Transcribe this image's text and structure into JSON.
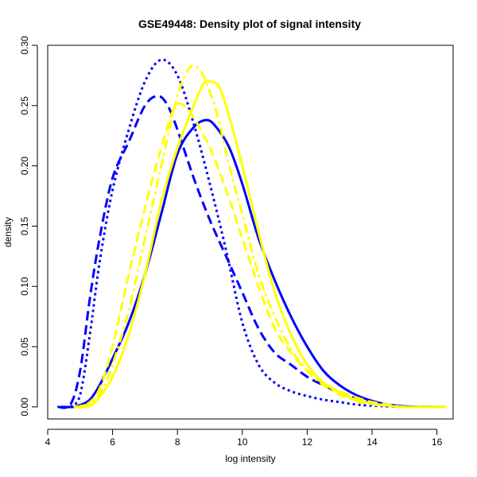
{
  "chart_data": {
    "type": "line",
    "title": "GSE49448: Density plot of signal intensity",
    "xlabel": "log intensity",
    "ylabel": "density",
    "xlim": [
      4,
      16.5
    ],
    "ylim": [
      -0.01,
      0.3
    ],
    "x_ticks": [
      4,
      6,
      8,
      10,
      12,
      14,
      16
    ],
    "y_ticks": [
      0.0,
      0.05,
      0.1,
      0.15,
      0.2,
      0.25,
      0.3
    ],
    "x_tick_labels": [
      "4",
      "6",
      "8",
      "10",
      "12",
      "14",
      "16"
    ],
    "y_tick_labels": [
      "0.00",
      "0.05",
      "0.10",
      "0.15",
      "0.20",
      "0.25",
      "0.30"
    ],
    "grid": false,
    "legend": "none",
    "series": [
      {
        "color": "#0000ff",
        "linestyle": "solid",
        "points": [
          [
            4.4,
            0.0
          ],
          [
            4.8,
            0.0
          ],
          [
            5.0,
            0.0015
          ],
          [
            5.3,
            0.006
          ],
          [
            5.6,
            0.018
          ],
          [
            6.0,
            0.04
          ],
          [
            6.5,
            0.07
          ],
          [
            7.0,
            0.11
          ],
          [
            7.5,
            0.16
          ],
          [
            8.0,
            0.21
          ],
          [
            8.5,
            0.232
          ],
          [
            8.9,
            0.238
          ],
          [
            9.2,
            0.232
          ],
          [
            9.6,
            0.215
          ],
          [
            10.0,
            0.185
          ],
          [
            10.5,
            0.14
          ],
          [
            11.0,
            0.105
          ],
          [
            11.5,
            0.075
          ],
          [
            12.0,
            0.05
          ],
          [
            12.5,
            0.03
          ],
          [
            13.0,
            0.018
          ],
          [
            13.5,
            0.01
          ],
          [
            14.0,
            0.005
          ],
          [
            14.5,
            0.002
          ],
          [
            15.0,
            0.0005
          ],
          [
            15.5,
            0.0
          ],
          [
            16.2,
            0.0
          ]
        ]
      },
      {
        "color": "#0000ff",
        "linestyle": "dashed",
        "points": [
          [
            4.3,
            0.0
          ],
          [
            4.7,
            0.002
          ],
          [
            5.0,
            0.03
          ],
          [
            5.3,
            0.09
          ],
          [
            5.6,
            0.14
          ],
          [
            6.0,
            0.19
          ],
          [
            6.5,
            0.22
          ],
          [
            7.0,
            0.25
          ],
          [
            7.4,
            0.258
          ],
          [
            7.7,
            0.25
          ],
          [
            8.0,
            0.23
          ],
          [
            8.5,
            0.19
          ],
          [
            9.0,
            0.155
          ],
          [
            9.5,
            0.125
          ],
          [
            10.0,
            0.095
          ],
          [
            10.5,
            0.065
          ],
          [
            11.0,
            0.045
          ],
          [
            11.5,
            0.035
          ],
          [
            12.0,
            0.025
          ],
          [
            12.5,
            0.018
          ],
          [
            13.0,
            0.012
          ],
          [
            13.5,
            0.007
          ],
          [
            14.0,
            0.003
          ],
          [
            14.5,
            0.001
          ],
          [
            15.0,
            0.0
          ],
          [
            16.0,
            0.0
          ]
        ]
      },
      {
        "color": "#0000ff",
        "linestyle": "dotted",
        "points": [
          [
            4.7,
            0.0
          ],
          [
            5.0,
            0.01
          ],
          [
            5.3,
            0.06
          ],
          [
            5.6,
            0.12
          ],
          [
            6.0,
            0.18
          ],
          [
            6.5,
            0.23
          ],
          [
            7.0,
            0.27
          ],
          [
            7.5,
            0.288
          ],
          [
            8.0,
            0.275
          ],
          [
            8.5,
            0.235
          ],
          [
            9.0,
            0.185
          ],
          [
            9.5,
            0.13
          ],
          [
            10.0,
            0.07
          ],
          [
            10.5,
            0.035
          ],
          [
            11.0,
            0.02
          ],
          [
            11.5,
            0.013
          ],
          [
            12.0,
            0.009
          ],
          [
            12.5,
            0.006
          ],
          [
            13.0,
            0.004
          ],
          [
            13.5,
            0.002
          ],
          [
            14.0,
            0.001
          ],
          [
            15.0,
            0.0
          ]
        ]
      },
      {
        "color": "#ffff00",
        "linestyle": "solid",
        "points": [
          [
            4.8,
            0.0
          ],
          [
            5.2,
            0.0
          ],
          [
            5.5,
            0.005
          ],
          [
            6.0,
            0.025
          ],
          [
            6.5,
            0.06
          ],
          [
            7.0,
            0.11
          ],
          [
            7.5,
            0.17
          ],
          [
            8.0,
            0.215
          ],
          [
            8.5,
            0.25
          ],
          [
            8.8,
            0.268
          ],
          [
            9.0,
            0.27
          ],
          [
            9.3,
            0.265
          ],
          [
            9.6,
            0.24
          ],
          [
            10.0,
            0.2
          ],
          [
            10.5,
            0.145
          ],
          [
            11.0,
            0.095
          ],
          [
            11.5,
            0.06
          ],
          [
            12.0,
            0.035
          ],
          [
            12.5,
            0.02
          ],
          [
            13.0,
            0.012
          ],
          [
            13.5,
            0.006
          ],
          [
            14.0,
            0.003
          ],
          [
            14.5,
            0.001
          ],
          [
            15.0,
            0.0
          ],
          [
            16.3,
            0.0
          ]
        ]
      },
      {
        "color": "#ffff00",
        "linestyle": "dashed",
        "points": [
          [
            4.8,
            0.0
          ],
          [
            5.2,
            0.002
          ],
          [
            5.6,
            0.015
          ],
          [
            6.0,
            0.05
          ],
          [
            6.5,
            0.11
          ],
          [
            7.0,
            0.165
          ],
          [
            7.5,
            0.215
          ],
          [
            7.9,
            0.248
          ],
          [
            8.2,
            0.25
          ],
          [
            8.5,
            0.24
          ],
          [
            9.0,
            0.215
          ],
          [
            9.5,
            0.18
          ],
          [
            10.0,
            0.14
          ],
          [
            10.5,
            0.1
          ],
          [
            11.0,
            0.065
          ],
          [
            11.5,
            0.045
          ],
          [
            12.0,
            0.03
          ],
          [
            12.5,
            0.02
          ],
          [
            13.0,
            0.013
          ],
          [
            13.5,
            0.008
          ],
          [
            14.0,
            0.004
          ],
          [
            14.5,
            0.002
          ],
          [
            15.0,
            0.0
          ],
          [
            16.0,
            0.0
          ]
        ]
      },
      {
        "color": "#ffff00",
        "linestyle": "dotdash",
        "points": [
          [
            4.8,
            0.0
          ],
          [
            5.3,
            0.003
          ],
          [
            5.7,
            0.015
          ],
          [
            6.0,
            0.035
          ],
          [
            6.5,
            0.08
          ],
          [
            7.0,
            0.14
          ],
          [
            7.5,
            0.2
          ],
          [
            8.0,
            0.258
          ],
          [
            8.3,
            0.278
          ],
          [
            8.5,
            0.283
          ],
          [
            8.8,
            0.275
          ],
          [
            9.2,
            0.245
          ],
          [
            9.6,
            0.2
          ],
          [
            10.0,
            0.16
          ],
          [
            10.5,
            0.11
          ],
          [
            11.0,
            0.075
          ],
          [
            11.5,
            0.048
          ],
          [
            12.0,
            0.03
          ],
          [
            12.5,
            0.018
          ],
          [
            13.0,
            0.01
          ],
          [
            13.5,
            0.005
          ],
          [
            14.0,
            0.002
          ],
          [
            14.5,
            0.001
          ],
          [
            15.0,
            0.0
          ],
          [
            16.2,
            0.0
          ]
        ]
      }
    ]
  }
}
